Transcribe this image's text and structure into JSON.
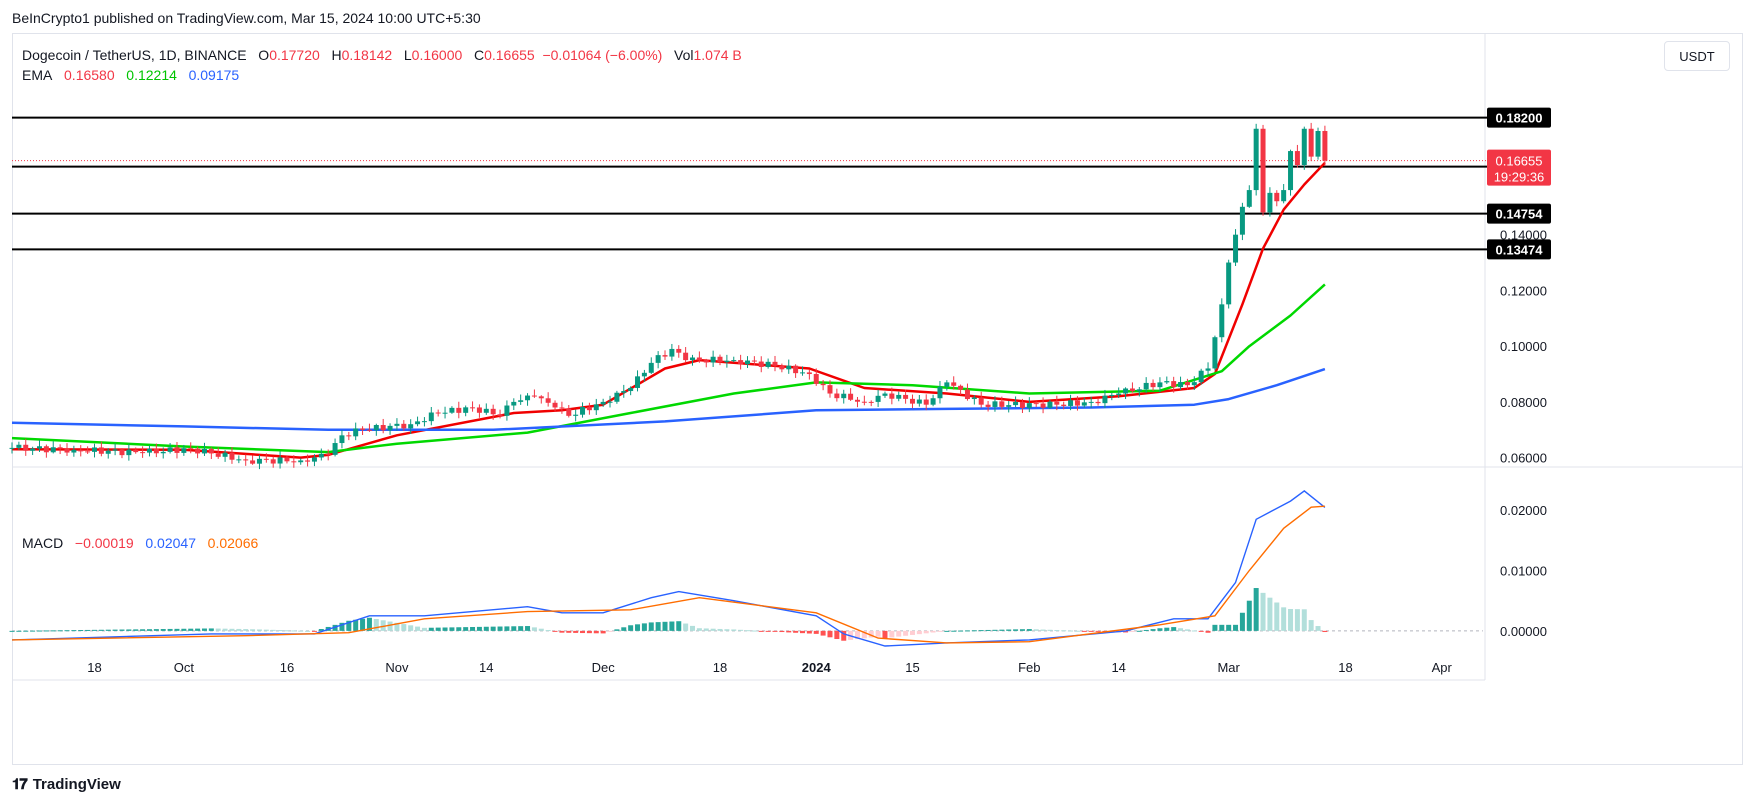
{
  "publisher_line": "BeInCrypto1 published on TradingView.com, Mar 15, 2024 10:00 UTC+5:30",
  "legend": {
    "symbol": "Dogecoin / TetherUS, 1D, BINANCE",
    "o_label": "O",
    "o": "0.17720",
    "h_label": "H",
    "h": "0.18142",
    "l_label": "L",
    "l": "0.16000",
    "c_label": "C",
    "c": "0.16655",
    "change": "−0.01064 (−6.00%)",
    "vol_label": "Vol",
    "vol": "1.074 B",
    "ema_label": "EMA",
    "ema1": "0.16580",
    "ema2": "0.12214",
    "ema3": "0.09175"
  },
  "macd_legend": {
    "label": "MACD",
    "hist": "−0.00019",
    "macd": "0.02047",
    "signal": "0.02066"
  },
  "currency_button": "USDT",
  "branding": "TradingView",
  "price_badge": {
    "price": "0.16655",
    "countdown": "19:29:36"
  },
  "colors": {
    "up": "#089981",
    "down": "#f23645",
    "ema_fast": "#f00000",
    "ema_mid": "#00d800",
    "ema_slow": "#2962ff",
    "macd_line": "#2962ff",
    "signal_line": "#ff6d00",
    "hist_up_strong": "#26a69a",
    "hist_up_weak": "#b2dfdb",
    "hist_down_strong": "#ff5252",
    "hist_down_weak": "#ffcdd2"
  },
  "chart_data": [
    {
      "type": "candlestick",
      "title": "Dogecoin / TetherUS, 1D, BINANCE",
      "x_range": [
        "2023-09-06",
        "2024-04-07"
      ],
      "ylim": [
        0.057,
        0.212
      ],
      "y_ticks": [
        "0.06000",
        "0.08000",
        "0.10000",
        "0.12000",
        "0.14000"
      ],
      "x_ticks": [
        {
          "date": "2023-09-18",
          "label": "18"
        },
        {
          "date": "2023-10-01",
          "label": "Oct"
        },
        {
          "date": "2023-10-16",
          "label": "16"
        },
        {
          "date": "2023-11-01",
          "label": "Nov"
        },
        {
          "date": "2023-11-14",
          "label": "14"
        },
        {
          "date": "2023-12-01",
          "label": "Dec"
        },
        {
          "date": "2023-12-18",
          "label": "18"
        },
        {
          "date": "2024-01-01",
          "label": "2024"
        },
        {
          "date": "2024-01-15",
          "label": "15"
        },
        {
          "date": "2024-02-01",
          "label": "Feb"
        },
        {
          "date": "2024-02-14",
          "label": "14"
        },
        {
          "date": "2024-03-01",
          "label": "Mar"
        },
        {
          "date": "2024-03-18",
          "label": "18"
        },
        {
          "date": "2024-04-01",
          "label": "Apr"
        }
      ],
      "horizontal_levels": [
        {
          "value": 0.182,
          "label": "0.18200"
        },
        {
          "value": 0.16442,
          "label": "0.16442"
        },
        {
          "value": 0.14754,
          "label": "0.14754"
        },
        {
          "value": 0.13474,
          "label": "0.13474"
        }
      ],
      "last_price": 0.16655,
      "anchors": [
        [
          "2023-09-06",
          0.0635
        ],
        [
          "2023-09-15",
          0.0628
        ],
        [
          "2023-09-25",
          0.0618
        ],
        [
          "2023-10-02",
          0.0632
        ],
        [
          "2023-10-10",
          0.059
        ],
        [
          "2023-10-18",
          0.059
        ],
        [
          "2023-10-22",
          0.061
        ],
        [
          "2023-10-24",
          0.068
        ],
        [
          "2023-10-27",
          0.07
        ],
        [
          "2023-11-03",
          0.072
        ],
        [
          "2023-11-07",
          0.076
        ],
        [
          "2023-11-12",
          0.078
        ],
        [
          "2023-11-16",
          0.075
        ],
        [
          "2023-11-18",
          0.08
        ],
        [
          "2023-11-21",
          0.082
        ],
        [
          "2023-11-24",
          0.078
        ],
        [
          "2023-11-26",
          0.075
        ],
        [
          "2023-12-01",
          0.08
        ],
        [
          "2023-12-05",
          0.085
        ],
        [
          "2023-12-08",
          0.094
        ],
        [
          "2023-12-11",
          0.099
        ],
        [
          "2023-12-13",
          0.095
        ],
        [
          "2023-12-20",
          0.095
        ],
        [
          "2023-12-26",
          0.093
        ],
        [
          "2023-12-31",
          0.09
        ],
        [
          "2024-01-03",
          0.083
        ],
        [
          "2024-01-08",
          0.08
        ],
        [
          "2024-01-11",
          0.083
        ],
        [
          "2024-01-17",
          0.079
        ],
        [
          "2024-01-20",
          0.087
        ],
        [
          "2024-01-25",
          0.079
        ],
        [
          "2024-02-05",
          0.079
        ],
        [
          "2024-02-10",
          0.08
        ],
        [
          "2024-02-14",
          0.083
        ],
        [
          "2024-02-20",
          0.087
        ],
        [
          "2024-02-24",
          0.086
        ],
        [
          "2024-02-27",
          0.092
        ],
        [
          "2024-02-29",
          0.115
        ],
        [
          "2024-03-01",
          0.13
        ],
        [
          "2024-03-02",
          0.14
        ],
        [
          "2024-03-03",
          0.15
        ],
        [
          "2024-03-04",
          0.156
        ],
        [
          "2024-03-05",
          0.178
        ],
        [
          "2024-03-06",
          0.148
        ],
        [
          "2024-03-07",
          0.155
        ],
        [
          "2024-03-08",
          0.152
        ],
        [
          "2024-03-09",
          0.156
        ],
        [
          "2024-03-10",
          0.17
        ],
        [
          "2024-03-11",
          0.165
        ],
        [
          "2024-03-12",
          0.178
        ],
        [
          "2024-03-13",
          0.168
        ],
        [
          "2024-03-14",
          0.1772
        ],
        [
          "2024-03-15",
          0.16655
        ]
      ],
      "ema": [
        {
          "name": "EMA",
          "last": 0.1658,
          "points": [
            [
              "2023-09-06",
              0.063
            ],
            [
              "2023-10-01",
              0.0628
            ],
            [
              "2023-10-18",
              0.06
            ],
            [
              "2023-10-22",
              0.061
            ],
            [
              "2023-11-01",
              0.068
            ],
            [
              "2023-11-18",
              0.076
            ],
            [
              "2023-11-25",
              0.077
            ],
            [
              "2023-12-01",
              0.079
            ],
            [
              "2023-12-10",
              0.092
            ],
            [
              "2023-12-15",
              0.095
            ],
            [
              "2023-12-31",
              0.092
            ],
            [
              "2024-01-08",
              0.085
            ],
            [
              "2024-01-20",
              0.083
            ],
            [
              "2024-02-01",
              0.08
            ],
            [
              "2024-02-14",
              0.082
            ],
            [
              "2024-02-25",
              0.085
            ],
            [
              "2024-02-28",
              0.09
            ],
            [
              "2024-03-03",
              0.115
            ],
            [
              "2024-03-06",
              0.135
            ],
            [
              "2024-03-09",
              0.149
            ],
            [
              "2024-03-12",
              0.158
            ],
            [
              "2024-03-15",
              0.1658
            ]
          ]
        },
        {
          "name": "EMA",
          "last": 0.12214,
          "points": [
            [
              "2023-09-06",
              0.067
            ],
            [
              "2023-10-01",
              0.064
            ],
            [
              "2023-10-22",
              0.062
            ],
            [
              "2023-11-01",
              0.065
            ],
            [
              "2023-11-20",
              0.069
            ],
            [
              "2023-12-05",
              0.076
            ],
            [
              "2023-12-20",
              0.083
            ],
            [
              "2024-01-01",
              0.087
            ],
            [
              "2024-01-15",
              0.086
            ],
            [
              "2024-02-01",
              0.083
            ],
            [
              "2024-02-20",
              0.084
            ],
            [
              "2024-02-29",
              0.091
            ],
            [
              "2024-03-04",
              0.1
            ],
            [
              "2024-03-10",
              0.111
            ],
            [
              "2024-03-15",
              0.12214
            ]
          ]
        },
        {
          "name": "EMA",
          "last": 0.09175,
          "points": [
            [
              "2023-09-06",
              0.0725
            ],
            [
              "2023-10-01",
              0.0712
            ],
            [
              "2023-10-22",
              0.07
            ],
            [
              "2023-11-15",
              0.07
            ],
            [
              "2023-12-10",
              0.073
            ],
            [
              "2024-01-01",
              0.077
            ],
            [
              "2024-01-20",
              0.0775
            ],
            [
              "2024-02-10",
              0.078
            ],
            [
              "2024-02-25",
              0.079
            ],
            [
              "2024-03-01",
              0.081
            ],
            [
              "2024-03-08",
              0.086
            ],
            [
              "2024-03-15",
              0.09175
            ]
          ]
        }
      ]
    },
    {
      "type": "line",
      "title": "MACD",
      "ylim": [
        -0.004,
        0.026
      ],
      "y_ticks": [
        "0.00000",
        "0.01000",
        "0.02000"
      ],
      "series": [
        {
          "name": "MACD",
          "points": [
            [
              "2023-09-06",
              -0.0015
            ],
            [
              "2023-10-05",
              -0.0005
            ],
            [
              "2023-10-20",
              -0.0005
            ],
            [
              "2023-10-28",
              0.0025
            ],
            [
              "2023-11-05",
              0.0025
            ],
            [
              "2023-11-20",
              0.004
            ],
            [
              "2023-11-25",
              0.003
            ],
            [
              "2023-12-01",
              0.003
            ],
            [
              "2023-12-08",
              0.0055
            ],
            [
              "2023-12-12",
              0.0065
            ],
            [
              "2023-12-20",
              0.005
            ],
            [
              "2024-01-01",
              0.0025
            ],
            [
              "2024-01-05",
              -0.0005
            ],
            [
              "2024-01-11",
              -0.0025
            ],
            [
              "2024-01-20",
              -0.002
            ],
            [
              "2024-02-01",
              -0.0015
            ],
            [
              "2024-02-15",
              0.0
            ],
            [
              "2024-02-22",
              0.002
            ],
            [
              "2024-02-27",
              0.002
            ],
            [
              "2024-03-02",
              0.008
            ],
            [
              "2024-03-05",
              0.0185
            ],
            [
              "2024-03-10",
              0.0215
            ],
            [
              "2024-03-12",
              0.0232
            ],
            [
              "2024-03-15",
              0.02047
            ]
          ]
        },
        {
          "name": "Signal",
          "points": [
            [
              "2023-09-06",
              -0.0015
            ],
            [
              "2023-10-10",
              -0.0008
            ],
            [
              "2023-10-25",
              -0.0003
            ],
            [
              "2023-11-05",
              0.002
            ],
            [
              "2023-11-20",
              0.0032
            ],
            [
              "2023-12-05",
              0.0035
            ],
            [
              "2023-12-15",
              0.0055
            ],
            [
              "2024-01-01",
              0.003
            ],
            [
              "2024-01-10",
              -0.0012
            ],
            [
              "2024-01-20",
              -0.002
            ],
            [
              "2024-02-01",
              -0.0018
            ],
            [
              "2024-02-20",
              0.001
            ],
            [
              "2024-02-28",
              0.0025
            ],
            [
              "2024-03-04",
              0.01
            ],
            [
              "2024-03-09",
              0.017
            ],
            [
              "2024-03-13",
              0.0205
            ],
            [
              "2024-03-15",
              0.02066
            ]
          ]
        }
      ]
    }
  ]
}
